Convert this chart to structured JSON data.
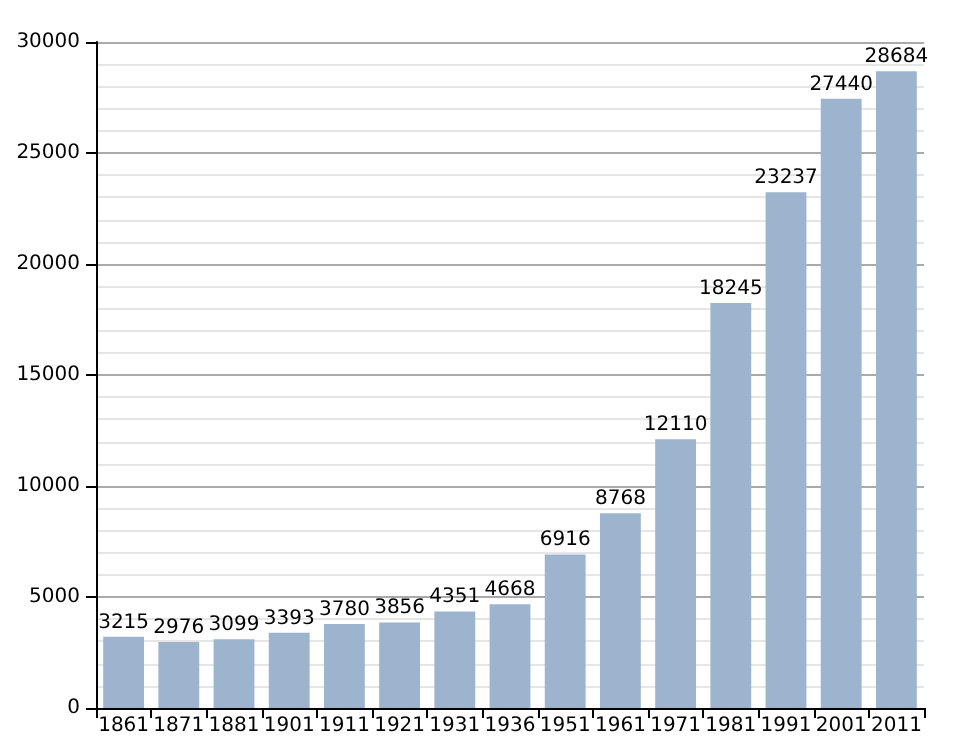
{
  "chart_data": {
    "type": "bar",
    "categories": [
      "1861",
      "1871",
      "1881",
      "1901",
      "1911",
      "1921",
      "1931",
      "1936",
      "1951",
      "1961",
      "1971",
      "1981",
      "1991",
      "2001",
      "2011"
    ],
    "values": [
      3215,
      2976,
      3099,
      3393,
      3780,
      3856,
      4351,
      4668,
      6916,
      8768,
      12110,
      18245,
      23237,
      27440,
      28684
    ],
    "color": "#9db4cf",
    "ylim": [
      0,
      30000
    ],
    "yticks": [
      0,
      5000,
      10000,
      15000,
      20000,
      25000,
      30000
    ],
    "grid": true,
    "data_labels": true
  }
}
